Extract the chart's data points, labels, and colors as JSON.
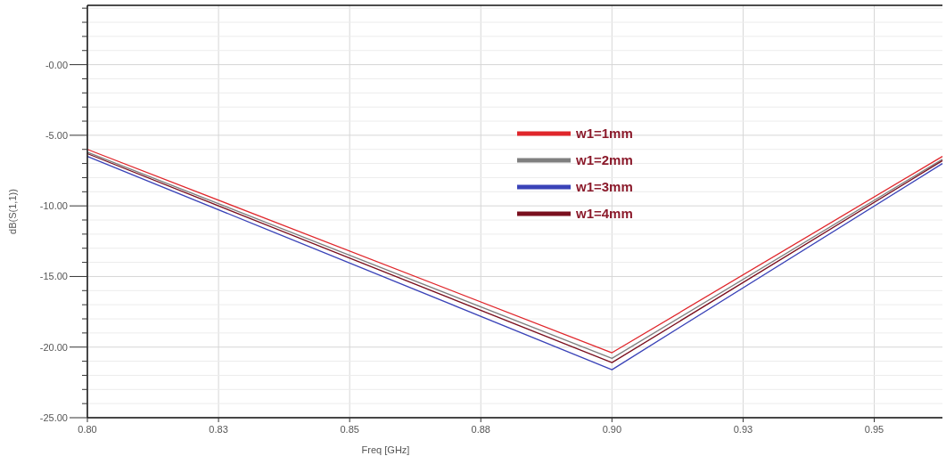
{
  "chart_data": {
    "type": "line",
    "xlabel": "Freq [GHz]",
    "ylabel": "dB(S(1,1))",
    "x": [
      0.8,
      0.9,
      0.963
    ],
    "series": [
      {
        "name": "w1=1mm",
        "color": "#e0262b",
        "values": [
          -6.0,
          -20.4,
          -6.5
        ]
      },
      {
        "name": "w1=2mm",
        "color": "#7f7f7f",
        "values": [
          -6.2,
          -20.8,
          -6.7
        ]
      },
      {
        "name": "w1=3mm",
        "color": "#3a43b8",
        "values": [
          -6.5,
          -21.6,
          -7.0
        ]
      },
      {
        "name": "w1=4mm",
        "color": "#7a0f1e",
        "values": [
          -6.3,
          -21.1,
          -6.8
        ]
      }
    ],
    "xlim": [
      0.8,
      0.963
    ],
    "xticks": [
      {
        "value": 0.8,
        "label": "0.80"
      },
      {
        "value": 0.825,
        "label": "0.83"
      },
      {
        "value": 0.85,
        "label": "0.85"
      },
      {
        "value": 0.875,
        "label": "0.88"
      },
      {
        "value": 0.9,
        "label": "0.90"
      },
      {
        "value": 0.925,
        "label": "0.93"
      },
      {
        "value": 0.95,
        "label": "0.95"
      }
    ],
    "ylim": [
      -25,
      4.2
    ],
    "yticks": [
      {
        "value": -25,
        "label": "-25.00"
      },
      {
        "value": -24,
        "label": null
      },
      {
        "value": -23,
        "label": null
      },
      {
        "value": -22,
        "label": null
      },
      {
        "value": -21,
        "label": null
      },
      {
        "value": -20,
        "label": "-20.00"
      },
      {
        "value": -19,
        "label": null
      },
      {
        "value": -18,
        "label": null
      },
      {
        "value": -17,
        "label": null
      },
      {
        "value": -16,
        "label": null
      },
      {
        "value": -15,
        "label": "-15.00"
      },
      {
        "value": -14,
        "label": null
      },
      {
        "value": -13,
        "label": null
      },
      {
        "value": -12,
        "label": null
      },
      {
        "value": -11,
        "label": null
      },
      {
        "value": -10,
        "label": "-10.00"
      },
      {
        "value": -9,
        "label": null
      },
      {
        "value": -8,
        "label": null
      },
      {
        "value": -7,
        "label": null
      },
      {
        "value": -6,
        "label": null
      },
      {
        "value": -5,
        "label": "-5.00"
      },
      {
        "value": -4,
        "label": null
      },
      {
        "value": -3,
        "label": null
      },
      {
        "value": -2,
        "label": null
      },
      {
        "value": -1,
        "label": null
      },
      {
        "value": 0,
        "label": "-0.00"
      },
      {
        "value": 1,
        "label": null
      },
      {
        "value": 2,
        "label": null
      },
      {
        "value": 3,
        "label": null
      },
      {
        "value": 4,
        "label": null
      }
    ],
    "grid": true,
    "legend": "top",
    "marker": "none",
    "line_style": "solid"
  }
}
